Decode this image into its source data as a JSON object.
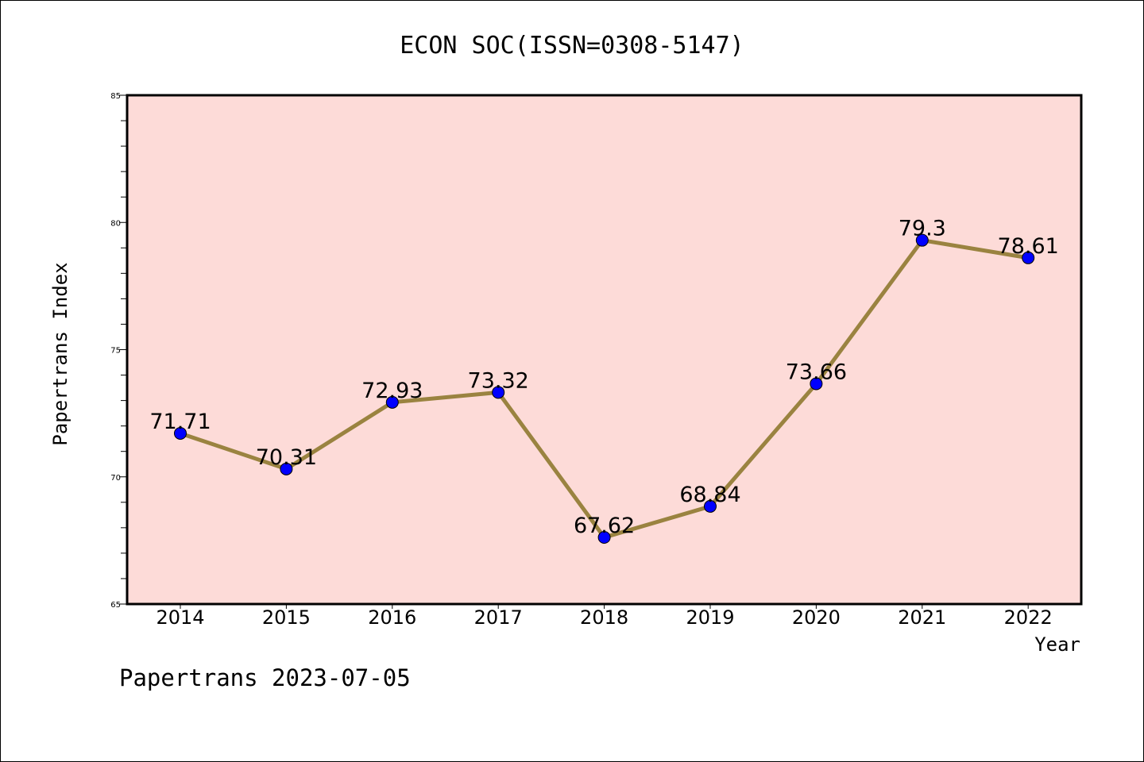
{
  "chart_data": {
    "type": "line",
    "title": "ECON SOC(ISSN=0308-5147)",
    "xlabel": "Year",
    "ylabel": "Papertrans Index",
    "categories": [
      "2014",
      "2015",
      "2016",
      "2017",
      "2018",
      "2019",
      "2020",
      "2021",
      "2022"
    ],
    "values": [
      71.71,
      70.31,
      72.93,
      73.32,
      67.62,
      68.84,
      73.66,
      79.3,
      78.61
    ],
    "data_labels": [
      "71.71",
      "70.31",
      "72.93",
      "73.32",
      "67.62",
      "68.84",
      "73.66",
      "79.3",
      "78.61"
    ],
    "ylim": [
      65,
      85
    ],
    "yticks": [
      65,
      70,
      75,
      80,
      85
    ],
    "grid": false,
    "legend": "none",
    "colors": {
      "plot_background": "#fddbd8",
      "line": "#9a8340",
      "marker": "#0000ff"
    }
  },
  "footer": "Papertrans 2023-07-05"
}
